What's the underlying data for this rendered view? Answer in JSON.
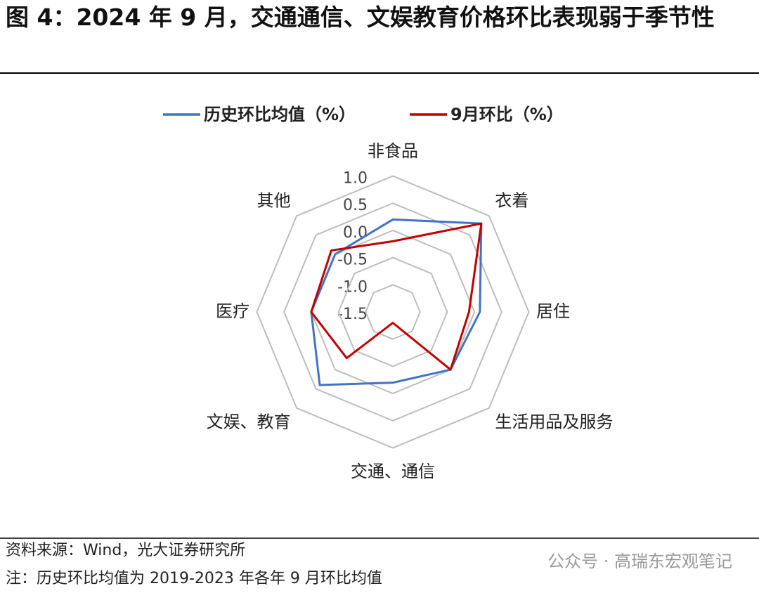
{
  "chart_data": {
    "type": "radar",
    "title": "图 4：2024 年 9 月，交通通信、文娱教育价格环比表现弱于季节性",
    "categories": [
      "非食品",
      "衣着",
      "居住",
      "生活用品及服务",
      "交通、通信",
      "文娱、教育",
      "医疗",
      "其他"
    ],
    "series": [
      {
        "name": "历史环比均值（%）",
        "color": "#4472c4",
        "values": [
          0.2,
          0.8,
          0.1,
          0.0,
          -0.2,
          0.4,
          0.0,
          0.0
        ]
      },
      {
        "name": "9月环比（%）",
        "color": "#c00000",
        "values": [
          -0.2,
          0.8,
          -0.1,
          0.0,
          -1.3,
          -0.3,
          0.0,
          0.1
        ]
      }
    ],
    "ylim": [
      -1.5,
      1.0
    ],
    "yticks": [
      -1.5,
      {
        "value": -1.0,
        "label": "-1.0"
      },
      -0.5,
      {
        "value": 0.0,
        "label": "0.0"
      },
      0.5,
      {
        "value": 1.0,
        "label": "1.0"
      }
    ],
    "grid": true,
    "legend": "top",
    "source": "资料来源：Wind，光大证券研究所",
    "note": "注：历史环比均值为 2019-2023 年各年 9 月环比均值",
    "watermark": "公众号 · 高瑞东宏观笔记"
  }
}
